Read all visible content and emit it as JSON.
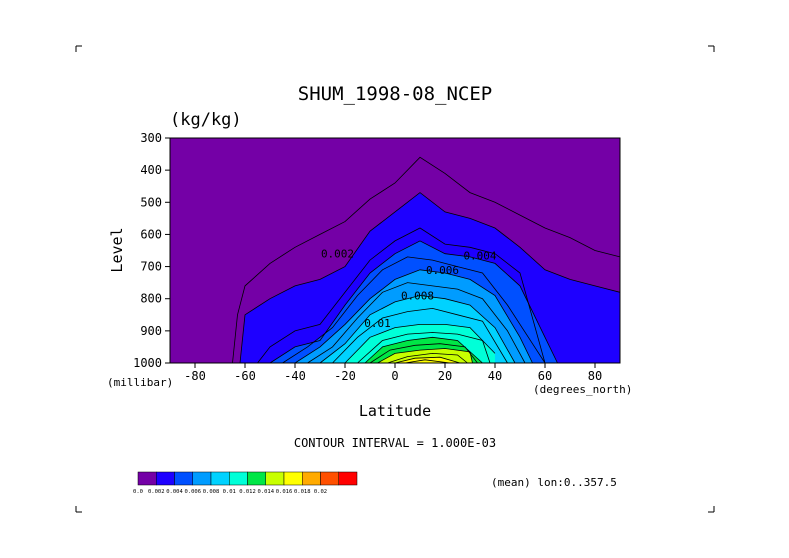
{
  "chart_data": {
    "type": "contour",
    "title": "SHUM_1998-08_NCEP",
    "units": "(kg/kg)",
    "xlabel": "Latitude",
    "ylabel": "Level",
    "x_unit_label": "(degrees_north)",
    "y_unit_label": "(millibar)",
    "xlim": [
      -90,
      90
    ],
    "ylim": [
      1000,
      300
    ],
    "x_ticks": [
      -80,
      -60,
      -40,
      -20,
      0,
      20,
      40,
      60,
      80
    ],
    "y_ticks": [
      300,
      400,
      500,
      600,
      700,
      800,
      900,
      1000
    ],
    "contour_interval_text": "CONTOUR INTERVAL = 1.000E-03",
    "annotation": "(mean) lon:0..357.5",
    "contour_labels": [
      {
        "text": "0.002",
        "lat": -23,
        "lev": 660
      },
      {
        "text": "0.004",
        "lat": 34,
        "lev": 665
      },
      {
        "text": "0.006",
        "lat": 19,
        "lev": 710
      },
      {
        "text": "0.008",
        "lat": 9,
        "lev": 790
      },
      {
        "text": "0.01",
        "lat": -7,
        "lev": 875
      }
    ],
    "colorbar": {
      "colors": [
        "#7400a6",
        "#1e00ff",
        "#0050ff",
        "#009cff",
        "#00d2ff",
        "#00ffd8",
        "#00e646",
        "#c8ff00",
        "#ffff00",
        "#ffaa00",
        "#ff5000",
        "#ff0000"
      ],
      "boundary_labels": [
        "0.0",
        "0.002",
        "0.004",
        "0.006",
        "0.008",
        "0.01",
        "0.012",
        "0.014",
        "0.016",
        "0.018",
        "0.02"
      ]
    },
    "fill_levels": [
      0.001,
      0.002,
      0.003,
      0.004,
      0.005,
      0.006,
      0.007,
      0.008,
      0.009,
      0.01,
      0.011,
      0.012,
      0.013,
      0.014,
      0.015,
      0.016,
      0.017
    ],
    "series": [
      {
        "level": 0.001,
        "lat": [
          -65,
          -63,
          -60,
          -50,
          -40,
          -30,
          -20,
          -10,
          0,
          10,
          20,
          30,
          40,
          50,
          60,
          70,
          80,
          90
        ],
        "lev": [
          1000,
          850,
          760,
          690,
          640,
          600,
          560,
          490,
          440,
          360,
          410,
          470,
          500,
          540,
          580,
          610,
          650,
          670
        ]
      },
      {
        "level": 0.002,
        "lat": [
          -62,
          -60,
          -50,
          -40,
          -30,
          -20,
          -10,
          0,
          10,
          20,
          30,
          40,
          50,
          60,
          70,
          80,
          90
        ],
        "lev": [
          1000,
          850,
          800,
          760,
          740,
          700,
          590,
          530,
          470,
          530,
          550,
          580,
          640,
          710,
          740,
          760,
          780
        ]
      },
      {
        "level": 0.003,
        "lat": [
          -55,
          -50,
          -40,
          -30,
          -20,
          -10,
          0,
          10,
          20,
          30,
          40,
          50,
          60
        ],
        "lev": [
          1000,
          950,
          900,
          880,
          780,
          680,
          620,
          580,
          630,
          640,
          660,
          720,
          1000
        ]
      },
      {
        "level": 0.004,
        "lat": [
          -50,
          -40,
          -30,
          -20,
          -10,
          0,
          10,
          20,
          30,
          40,
          50,
          60,
          65
        ],
        "lev": [
          1000,
          950,
          930,
          820,
          720,
          660,
          620,
          660,
          670,
          690,
          760,
          920,
          1000
        ]
      },
      {
        "level": 0.005,
        "lat": [
          -45,
          -35,
          -25,
          -15,
          -5,
          5,
          15,
          25,
          35,
          45,
          55,
          60
        ],
        "lev": [
          1000,
          950,
          890,
          790,
          710,
          670,
          680,
          700,
          720,
          820,
          940,
          1000
        ]
      },
      {
        "level": 0.006,
        "lat": [
          -40,
          -30,
          -20,
          -10,
          0,
          10,
          20,
          30,
          40,
          50,
          55
        ],
        "lev": [
          1000,
          950,
          880,
          800,
          740,
          710,
          720,
          740,
          790,
          920,
          1000
        ]
      },
      {
        "level": 0.007,
        "lat": [
          -35,
          -25,
          -15,
          -5,
          5,
          15,
          25,
          35,
          45,
          52
        ],
        "lev": [
          1000,
          950,
          860,
          780,
          750,
          760,
          770,
          800,
          900,
          1000
        ]
      },
      {
        "level": 0.008,
        "lat": [
          -30,
          -20,
          -10,
          0,
          10,
          20,
          30,
          40,
          48
        ],
        "lev": [
          1000,
          940,
          850,
          810,
          790,
          800,
          820,
          890,
          1000
        ]
      },
      {
        "level": 0.009,
        "lat": [
          -25,
          -15,
          -5,
          5,
          15,
          25,
          35,
          45
        ],
        "lev": [
          1000,
          920,
          860,
          840,
          830,
          850,
          870,
          1000
        ]
      },
      {
        "level": 0.01,
        "lat": [
          -20,
          -10,
          0,
          10,
          20,
          30,
          40
        ],
        "lev": [
          1000,
          920,
          890,
          880,
          880,
          890,
          970
        ]
      },
      {
        "level": 0.011,
        "lat": [
          -15,
          -5,
          5,
          15,
          25,
          35,
          38
        ],
        "lev": [
          1000,
          930,
          910,
          905,
          910,
          930,
          1000
        ]
      },
      {
        "level": 0.012,
        "lat": [
          -12,
          -5,
          5,
          15,
          25,
          35
        ],
        "lev": [
          1000,
          950,
          930,
          920,
          930,
          1000
        ]
      },
      {
        "level": 0.013,
        "lat": [
          -10,
          -2,
          8,
          18,
          28,
          33
        ],
        "lev": [
          1000,
          960,
          945,
          940,
          950,
          1000
        ]
      },
      {
        "level": 0.014,
        "lat": [
          -7,
          0,
          10,
          20,
          30,
          31
        ],
        "lev": [
          1000,
          970,
          960,
          955,
          965,
          1000
        ]
      },
      {
        "level": 0.015,
        "lat": [
          -3,
          5,
          15,
          25,
          29
        ],
        "lev": [
          1000,
          980,
          970,
          975,
          1000
        ]
      },
      {
        "level": 0.016,
        "lat": [
          0,
          8,
          18,
          26
        ],
        "lev": [
          1000,
          985,
          982,
          1000
        ]
      },
      {
        "level": 0.017,
        "lat": [
          4,
          12,
          22
        ],
        "lev": [
          1000,
          990,
          1000
        ]
      }
    ]
  }
}
